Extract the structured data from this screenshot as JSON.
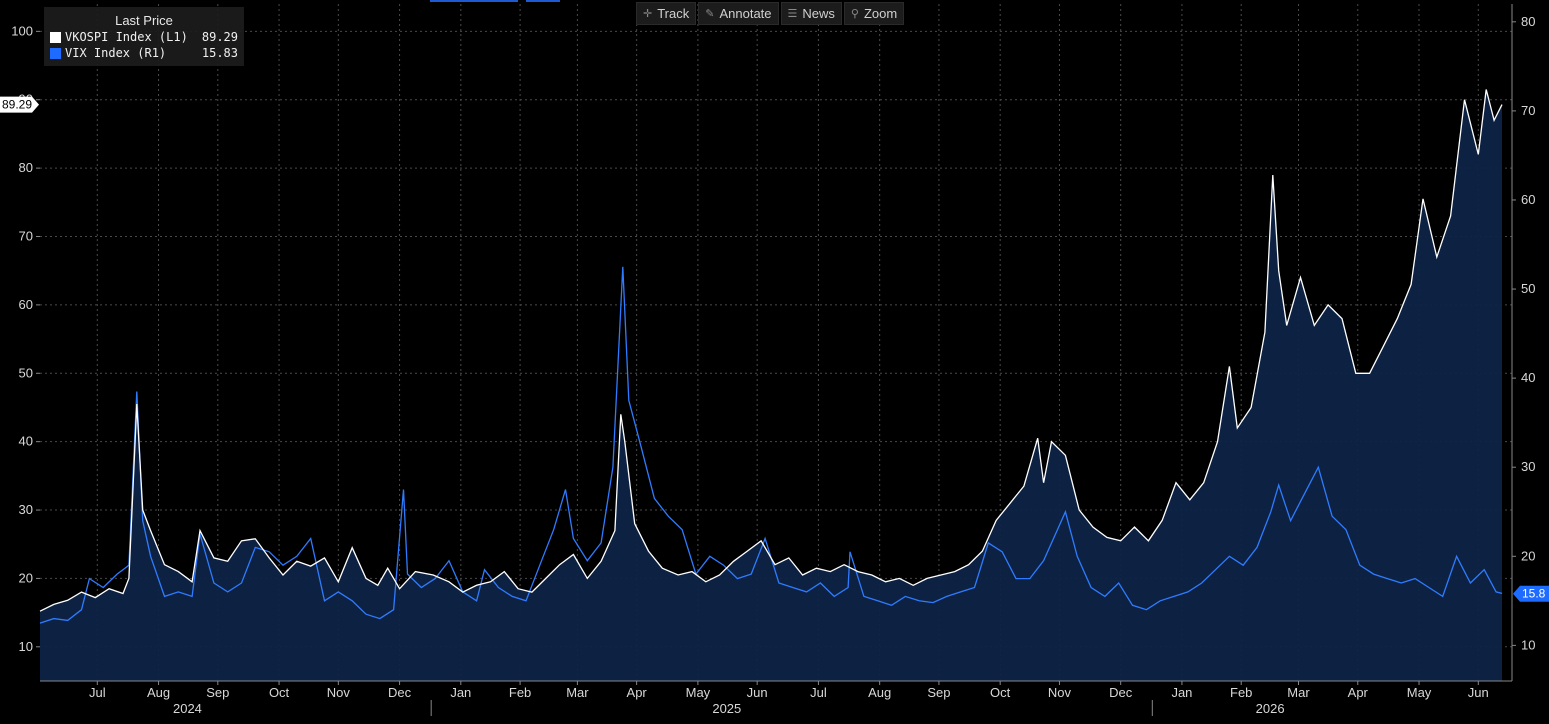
{
  "toolbar": {
    "track_label": "Track",
    "annotate_label": "Annotate",
    "news_label": "News",
    "zoom_label": "Zoom"
  },
  "legend": {
    "title": "Last Price",
    "series": [
      {
        "name": "VKOSPI Index  (L1)",
        "value": "89.29",
        "color": "#ffffff"
      },
      {
        "name": "VIX Index  (R1)",
        "value": "15.83",
        "color": "#1e6bff"
      }
    ]
  },
  "colors": {
    "background": "#000000",
    "vkospi_line": "#ffffff",
    "vix_line": "#2f7bff",
    "area_fill": "#0e2447",
    "grid": "#4a4a4a"
  },
  "chart_data": {
    "type": "line",
    "left_axis": {
      "ticks": [
        10,
        20,
        30,
        40,
        50,
        60,
        70,
        80,
        90,
        100
      ],
      "range": [
        5,
        104
      ],
      "last_value_tag": "89.29"
    },
    "right_axis": {
      "ticks": [
        10,
        20,
        30,
        40,
        50,
        60,
        70,
        80
      ],
      "range": [
        6,
        82
      ],
      "last_value_tag": "15.8"
    },
    "x_axis": {
      "range": [
        "2024-06-17",
        "2026-06-27"
      ],
      "month_ticks": [
        {
          "label": "Jul",
          "date": "2024-07-16"
        },
        {
          "label": "Aug",
          "date": "2024-08-16"
        },
        {
          "label": "Sep",
          "date": "2024-09-15"
        },
        {
          "label": "Oct",
          "date": "2024-10-16"
        },
        {
          "label": "Nov",
          "date": "2024-11-15"
        },
        {
          "label": "Dec",
          "date": "2024-12-16"
        },
        {
          "label": "Jan",
          "date": "2025-01-16"
        },
        {
          "label": "Feb",
          "date": "2025-02-15"
        },
        {
          "label": "Mar",
          "date": "2025-03-16"
        },
        {
          "label": "Apr",
          "date": "2025-04-15"
        },
        {
          "label": "May",
          "date": "2025-05-16"
        },
        {
          "label": "Jun",
          "date": "2025-06-15"
        },
        {
          "label": "Jul",
          "date": "2025-07-16"
        },
        {
          "label": "Aug",
          "date": "2025-08-16"
        },
        {
          "label": "Sep",
          "date": "2025-09-15"
        },
        {
          "label": "Oct",
          "date": "2025-10-16"
        },
        {
          "label": "Nov",
          "date": "2025-11-15"
        },
        {
          "label": "Dec",
          "date": "2025-12-16"
        },
        {
          "label": "Jan",
          "date": "2026-01-16"
        },
        {
          "label": "Feb",
          "date": "2026-02-15"
        },
        {
          "label": "Mar",
          "date": "2026-03-16"
        },
        {
          "label": "Apr",
          "date": "2026-04-15"
        },
        {
          "label": "May",
          "date": "2026-05-16"
        },
        {
          "label": "Jun",
          "date": "2026-06-15"
        }
      ],
      "year_labels": [
        {
          "label": "2024",
          "date": "2024-09-30"
        },
        {
          "label": "2025",
          "date": "2025-06-30"
        },
        {
          "label": "2026",
          "date": "2026-04-01"
        }
      ],
      "year_dividers": [
        "2025-01-01",
        "2026-01-01"
      ]
    },
    "grid": true,
    "series": [
      {
        "name": "VKOSPI Index  (L1)",
        "axis": "left",
        "points": [
          [
            "2024-06-17",
            15.2
          ],
          [
            "2024-06-24",
            16.2
          ],
          [
            "2024-07-01",
            16.8
          ],
          [
            "2024-07-08",
            18.0
          ],
          [
            "2024-07-15",
            17.2
          ],
          [
            "2024-07-22",
            18.5
          ],
          [
            "2024-07-29",
            17.8
          ],
          [
            "2024-08-01",
            20.0
          ],
          [
            "2024-08-05",
            45.5
          ],
          [
            "2024-08-08",
            30.0
          ],
          [
            "2024-08-12",
            27.0
          ],
          [
            "2024-08-19",
            22.0
          ],
          [
            "2024-08-26",
            21.0
          ],
          [
            "2024-09-02",
            19.5
          ],
          [
            "2024-09-06",
            27.0
          ],
          [
            "2024-09-13",
            23.0
          ],
          [
            "2024-09-20",
            22.5
          ],
          [
            "2024-09-27",
            25.5
          ],
          [
            "2024-10-04",
            25.8
          ],
          [
            "2024-10-11",
            23.0
          ],
          [
            "2024-10-18",
            20.5
          ],
          [
            "2024-10-25",
            22.5
          ],
          [
            "2024-11-01",
            21.8
          ],
          [
            "2024-11-08",
            23.0
          ],
          [
            "2024-11-15",
            19.5
          ],
          [
            "2024-11-22",
            24.5
          ],
          [
            "2024-11-29",
            20.0
          ],
          [
            "2024-12-05",
            19.0
          ],
          [
            "2024-12-10",
            21.5
          ],
          [
            "2024-12-16",
            18.5
          ],
          [
            "2024-12-24",
            21.0
          ],
          [
            "2025-01-02",
            20.5
          ],
          [
            "2025-01-10",
            19.5
          ],
          [
            "2025-01-17",
            18.0
          ],
          [
            "2025-01-24",
            19.0
          ],
          [
            "2025-01-31",
            19.5
          ],
          [
            "2025-02-07",
            21.0
          ],
          [
            "2025-02-14",
            18.5
          ],
          [
            "2025-02-21",
            18.0
          ],
          [
            "2025-02-28",
            20.0
          ],
          [
            "2025-03-07",
            22.0
          ],
          [
            "2025-03-14",
            23.5
          ],
          [
            "2025-03-21",
            20.0
          ],
          [
            "2025-03-28",
            22.5
          ],
          [
            "2025-04-04",
            27.0
          ],
          [
            "2025-04-07",
            44.0
          ],
          [
            "2025-04-09",
            40.0
          ],
          [
            "2025-04-14",
            28.0
          ],
          [
            "2025-04-21",
            24.0
          ],
          [
            "2025-04-28",
            21.5
          ],
          [
            "2025-05-06",
            20.5
          ],
          [
            "2025-05-13",
            21.0
          ],
          [
            "2025-05-20",
            19.5
          ],
          [
            "2025-05-27",
            20.5
          ],
          [
            "2025-06-03",
            22.5
          ],
          [
            "2025-06-10",
            24.0
          ],
          [
            "2025-06-17",
            25.5
          ],
          [
            "2025-06-24",
            22.0
          ],
          [
            "2025-07-01",
            23.0
          ],
          [
            "2025-07-08",
            20.5
          ],
          [
            "2025-07-15",
            21.5
          ],
          [
            "2025-07-22",
            21.0
          ],
          [
            "2025-07-29",
            22.0
          ],
          [
            "2025-08-05",
            21.0
          ],
          [
            "2025-08-12",
            20.5
          ],
          [
            "2025-08-19",
            19.5
          ],
          [
            "2025-08-26",
            20.0
          ],
          [
            "2025-09-02",
            19.0
          ],
          [
            "2025-09-09",
            20.0
          ],
          [
            "2025-09-16",
            20.5
          ],
          [
            "2025-09-23",
            21.0
          ],
          [
            "2025-09-30",
            22.0
          ],
          [
            "2025-10-07",
            24.0
          ],
          [
            "2025-10-14",
            28.5
          ],
          [
            "2025-10-21",
            31.0
          ],
          [
            "2025-10-28",
            33.5
          ],
          [
            "2025-11-04",
            40.5
          ],
          [
            "2025-11-07",
            34.0
          ],
          [
            "2025-11-11",
            40.0
          ],
          [
            "2025-11-18",
            38.0
          ],
          [
            "2025-11-25",
            30.0
          ],
          [
            "2025-12-02",
            27.5
          ],
          [
            "2025-12-09",
            26.0
          ],
          [
            "2025-12-16",
            25.5
          ],
          [
            "2025-12-23",
            27.5
          ],
          [
            "2025-12-30",
            25.5
          ],
          [
            "2026-01-06",
            28.5
          ],
          [
            "2026-01-13",
            34.0
          ],
          [
            "2026-01-20",
            31.5
          ],
          [
            "2026-01-27",
            34.0
          ],
          [
            "2026-02-03",
            40.0
          ],
          [
            "2026-02-09",
            51.0
          ],
          [
            "2026-02-13",
            42.0
          ],
          [
            "2026-02-20",
            45.0
          ],
          [
            "2026-02-27",
            56.0
          ],
          [
            "2026-03-03",
            79.0
          ],
          [
            "2026-03-06",
            65.0
          ],
          [
            "2026-03-10",
            57.0
          ],
          [
            "2026-03-17",
            64.0
          ],
          [
            "2026-03-24",
            57.0
          ],
          [
            "2026-03-31",
            60.0
          ],
          [
            "2026-04-07",
            58.0
          ],
          [
            "2026-04-14",
            50.0
          ],
          [
            "2026-04-21",
            50.0
          ],
          [
            "2026-04-28",
            54.0
          ],
          [
            "2026-05-05",
            58.0
          ],
          [
            "2026-05-12",
            63.0
          ],
          [
            "2026-05-18",
            75.5
          ],
          [
            "2026-05-25",
            67.0
          ],
          [
            "2026-06-01",
            73.0
          ],
          [
            "2026-06-08",
            90.0
          ],
          [
            "2026-06-15",
            82.0
          ],
          [
            "2026-06-19",
            91.5
          ],
          [
            "2026-06-23",
            87.0
          ],
          [
            "2026-06-27",
            89.29
          ]
        ]
      },
      {
        "name": "VIX Index  (R1)",
        "axis": "right",
        "points": [
          [
            "2024-06-17",
            12.5
          ],
          [
            "2024-06-24",
            13.0
          ],
          [
            "2024-07-01",
            12.8
          ],
          [
            "2024-07-08",
            14.0
          ],
          [
            "2024-07-12",
            17.5
          ],
          [
            "2024-07-19",
            16.5
          ],
          [
            "2024-07-26",
            18.0
          ],
          [
            "2024-08-01",
            19.0
          ],
          [
            "2024-08-05",
            38.5
          ],
          [
            "2024-08-08",
            24.0
          ],
          [
            "2024-08-12",
            20.0
          ],
          [
            "2024-08-19",
            15.5
          ],
          [
            "2024-08-26",
            16.0
          ],
          [
            "2024-09-02",
            15.5
          ],
          [
            "2024-09-06",
            22.5
          ],
          [
            "2024-09-13",
            17.0
          ],
          [
            "2024-09-20",
            16.0
          ],
          [
            "2024-09-27",
            17.0
          ],
          [
            "2024-10-04",
            21.0
          ],
          [
            "2024-10-11",
            20.5
          ],
          [
            "2024-10-18",
            19.0
          ],
          [
            "2024-10-25",
            20.0
          ],
          [
            "2024-11-01",
            22.0
          ],
          [
            "2024-11-08",
            15.0
          ],
          [
            "2024-11-15",
            16.0
          ],
          [
            "2024-11-22",
            15.0
          ],
          [
            "2024-11-29",
            13.5
          ],
          [
            "2024-12-06",
            13.0
          ],
          [
            "2024-12-13",
            14.0
          ],
          [
            "2024-12-18",
            27.5
          ],
          [
            "2024-12-20",
            18.0
          ],
          [
            "2024-12-27",
            16.5
          ],
          [
            "2025-01-03",
            17.5
          ],
          [
            "2025-01-10",
            19.5
          ],
          [
            "2025-01-17",
            16.0
          ],
          [
            "2025-01-24",
            15.0
          ],
          [
            "2025-01-28",
            18.5
          ],
          [
            "2025-02-04",
            16.5
          ],
          [
            "2025-02-11",
            15.5
          ],
          [
            "2025-02-18",
            15.0
          ],
          [
            "2025-02-25",
            19.0
          ],
          [
            "2025-03-04",
            23.0
          ],
          [
            "2025-03-10",
            27.5
          ],
          [
            "2025-03-14",
            22.0
          ],
          [
            "2025-03-21",
            19.5
          ],
          [
            "2025-03-28",
            21.5
          ],
          [
            "2025-04-03",
            30.0
          ],
          [
            "2025-04-08",
            52.5
          ],
          [
            "2025-04-11",
            37.5
          ],
          [
            "2025-04-17",
            32.5
          ],
          [
            "2025-04-24",
            26.5
          ],
          [
            "2025-05-01",
            24.5
          ],
          [
            "2025-05-08",
            23.0
          ],
          [
            "2025-05-15",
            18.0
          ],
          [
            "2025-05-22",
            20.0
          ],
          [
            "2025-05-29",
            19.0
          ],
          [
            "2025-06-05",
            17.5
          ],
          [
            "2025-06-12",
            18.0
          ],
          [
            "2025-06-19",
            22.0
          ],
          [
            "2025-06-26",
            17.0
          ],
          [
            "2025-07-03",
            16.5
          ],
          [
            "2025-07-10",
            16.0
          ],
          [
            "2025-07-17",
            17.0
          ],
          [
            "2025-07-24",
            15.5
          ],
          [
            "2025-07-31",
            16.5
          ],
          [
            "2025-08-01",
            20.5
          ],
          [
            "2025-08-08",
            15.5
          ],
          [
            "2025-08-15",
            15.0
          ],
          [
            "2025-08-22",
            14.5
          ],
          [
            "2025-08-29",
            15.5
          ],
          [
            "2025-09-05",
            15.0
          ],
          [
            "2025-09-12",
            14.8
          ],
          [
            "2025-09-19",
            15.5
          ],
          [
            "2025-09-26",
            16.0
          ],
          [
            "2025-10-03",
            16.5
          ],
          [
            "2025-10-10",
            21.5
          ],
          [
            "2025-10-17",
            20.5
          ],
          [
            "2025-10-24",
            17.5
          ],
          [
            "2025-10-31",
            17.5
          ],
          [
            "2025-11-07",
            19.5
          ],
          [
            "2025-11-14",
            23.0
          ],
          [
            "2025-11-18",
            25.0
          ],
          [
            "2025-11-24",
            20.0
          ],
          [
            "2025-12-01",
            16.5
          ],
          [
            "2025-12-08",
            15.5
          ],
          [
            "2025-12-15",
            17.0
          ],
          [
            "2025-12-22",
            14.5
          ],
          [
            "2025-12-29",
            14.0
          ],
          [
            "2026-01-05",
            15.0
          ],
          [
            "2026-01-12",
            15.5
          ],
          [
            "2026-01-19",
            16.0
          ],
          [
            "2026-01-26",
            17.0
          ],
          [
            "2026-02-02",
            18.5
          ],
          [
            "2026-02-09",
            20.0
          ],
          [
            "2026-02-16",
            19.0
          ],
          [
            "2026-02-23",
            21.0
          ],
          [
            "2026-03-02",
            25.0
          ],
          [
            "2026-03-06",
            28.0
          ],
          [
            "2026-03-12",
            24.0
          ],
          [
            "2026-03-19",
            27.0
          ],
          [
            "2026-03-26",
            30.0
          ],
          [
            "2026-04-02",
            24.5
          ],
          [
            "2026-04-09",
            23.0
          ],
          [
            "2026-04-16",
            19.0
          ],
          [
            "2026-04-23",
            18.0
          ],
          [
            "2026-04-30",
            17.5
          ],
          [
            "2026-05-07",
            17.0
          ],
          [
            "2026-05-14",
            17.5
          ],
          [
            "2026-05-21",
            16.5
          ],
          [
            "2026-05-28",
            15.5
          ],
          [
            "2026-06-04",
            20.0
          ],
          [
            "2026-06-11",
            17.0
          ],
          [
            "2026-06-18",
            18.5
          ],
          [
            "2026-06-24",
            16.0
          ],
          [
            "2026-06-27",
            15.83
          ]
        ]
      }
    ]
  }
}
